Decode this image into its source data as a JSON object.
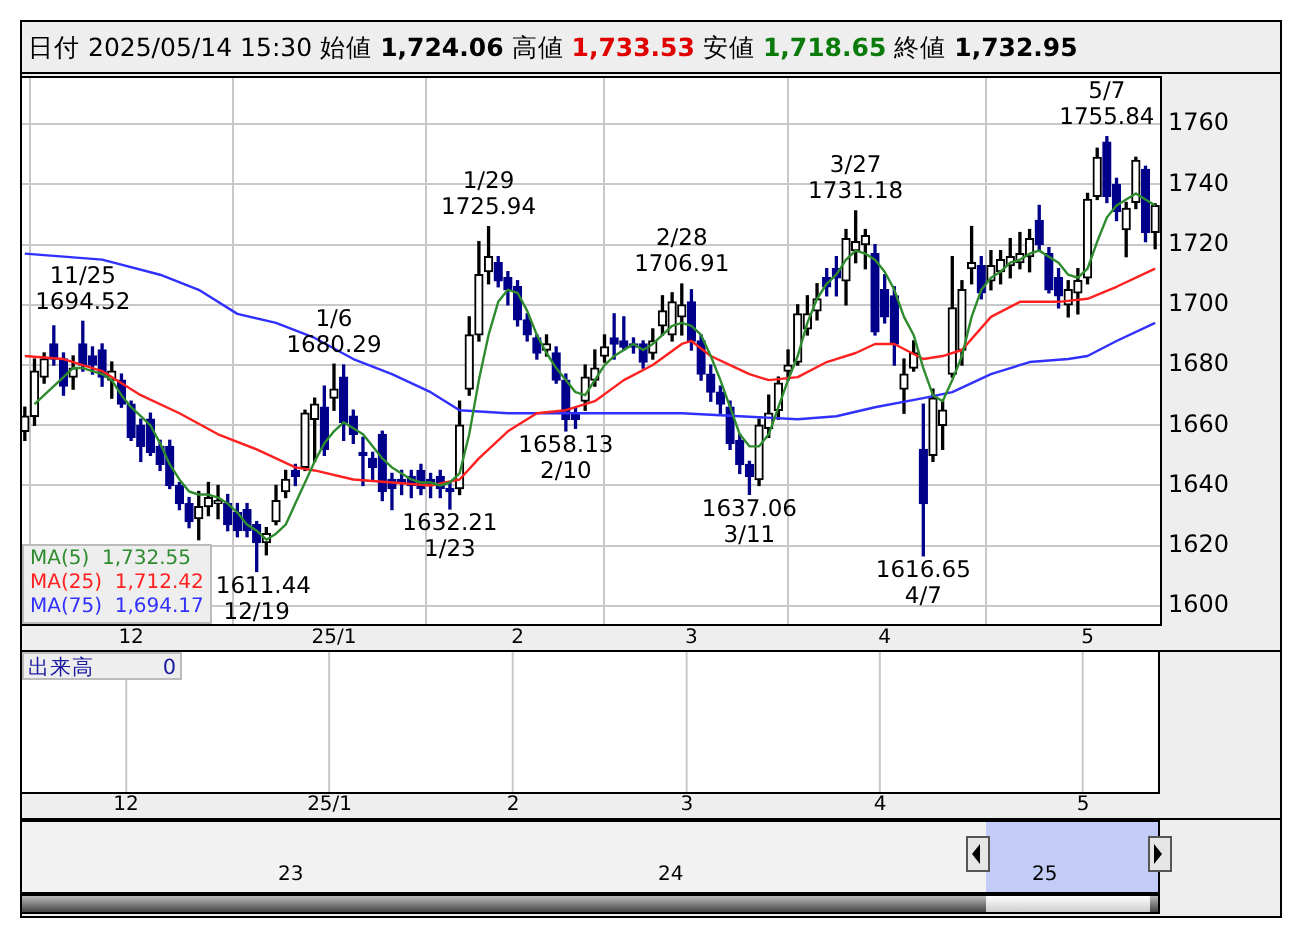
{
  "chart_data": {
    "type": "candlestick",
    "title": "日付 2025/05/14 15:30 始値 1,724.06 高値 1,733.53 安値 1,718.65 終値 1,732.95",
    "categories": [
      null,
      null,
      null,
      null,
      null,
      null,
      null,
      null,
      null,
      null,
      null,
      "12",
      null,
      null,
      null,
      null,
      null,
      null,
      null,
      null,
      null,
      null,
      null,
      null,
      null,
      null,
      null,
      null,
      null,
      null,
      null,
      null,
      "25/1",
      null,
      null,
      null,
      null,
      null,
      null,
      null,
      null,
      null,
      null,
      null,
      null,
      null,
      null,
      null,
      null,
      null,
      null,
      "2",
      null,
      null,
      null,
      null,
      null,
      null,
      null,
      null,
      null,
      null,
      null,
      null,
      null,
      null,
      null,
      null,
      null,
      "3",
      null,
      null,
      null,
      null,
      null,
      null,
      null,
      null,
      null,
      null,
      null,
      null,
      null,
      null,
      null,
      null,
      null,
      null,
      null,
      "4",
      null,
      null,
      null,
      null,
      null,
      null,
      null,
      null,
      null,
      null,
      null,
      null,
      null,
      null,
      null,
      null,
      null,
      null,
      null,
      null,
      "5",
      null,
      null,
      null,
      null,
      null,
      null,
      null
    ],
    "ohlc": [
      [
        1658,
        1666,
        1655,
        1663
      ],
      [
        1663,
        1682,
        1660,
        1678
      ],
      [
        1676,
        1684,
        1674,
        1682
      ],
      [
        1687,
        1693,
        1680,
        1682
      ],
      [
        1682,
        1684,
        1670,
        1673
      ],
      [
        1676,
        1683,
        1672,
        1679
      ],
      [
        1687,
        1694.52,
        1678,
        1680
      ],
      [
        1683,
        1686,
        1677,
        1680
      ],
      [
        1685,
        1687,
        1673,
        1676
      ],
      [
        1675,
        1681,
        1669,
        1678
      ],
      [
        1675,
        1677,
        1666,
        1667
      ],
      [
        1667,
        1668,
        1655,
        1656
      ],
      [
        1660,
        1662,
        1648,
        1653
      ],
      [
        1662,
        1664,
        1650,
        1651
      ],
      [
        1653,
        1655,
        1645,
        1647
      ],
      [
        1653,
        1655,
        1639,
        1640
      ],
      [
        1640,
        1641,
        1632,
        1634
      ],
      [
        1634,
        1636,
        1626,
        1628
      ],
      [
        1629,
        1638,
        1622,
        1633
      ],
      [
        1633,
        1641,
        1630,
        1636
      ],
      [
        1634,
        1640,
        1629,
        1635
      ],
      [
        1634,
        1637,
        1625,
        1627
      ],
      [
        1631,
        1634,
        1623,
        1625
      ],
      [
        1632,
        1634,
        1623,
        1625
      ],
      [
        1627,
        1628,
        1611.44,
        1621
      ],
      [
        1621,
        1626,
        1617,
        1624
      ],
      [
        1628,
        1640,
        1627,
        1635
      ],
      [
        1638,
        1645,
        1636,
        1642
      ],
      [
        1645,
        1647,
        1640,
        1643
      ],
      [
        1646,
        1665,
        1645,
        1664
      ],
      [
        1662,
        1669,
        1648,
        1667
      ],
      [
        1666,
        1673,
        1650,
        1652
      ],
      [
        1669,
        1680.29,
        1665,
        1672
      ],
      [
        1676,
        1680,
        1655,
        1661
      ],
      [
        1663,
        1665,
        1654,
        1657
      ],
      [
        1651,
        1656,
        1640,
        1650
      ],
      [
        1649,
        1651,
        1642,
        1646
      ],
      [
        1657,
        1658,
        1635,
        1638
      ],
      [
        1642,
        1644,
        1632,
        1639
      ],
      [
        1642,
        1645,
        1637,
        1641
      ],
      [
        1643,
        1645,
        1636,
        1640
      ],
      [
        1645,
        1647,
        1637,
        1639
      ],
      [
        1642,
        1644,
        1636,
        1640
      ],
      [
        1643,
        1645,
        1636,
        1639
      ],
      [
        1639,
        1641,
        1632.21,
        1638
      ],
      [
        1639,
        1668,
        1637,
        1660
      ],
      [
        1672,
        1696,
        1670,
        1690
      ],
      [
        1690,
        1721,
        1688,
        1710
      ],
      [
        1711,
        1725.94,
        1707,
        1716
      ],
      [
        1714,
        1716,
        1706,
        1708
      ],
      [
        1709,
        1711,
        1700,
        1705
      ],
      [
        1706,
        1708,
        1693,
        1695
      ],
      [
        1695,
        1697,
        1688,
        1690
      ],
      [
        1689,
        1690,
        1682,
        1684
      ],
      [
        1685,
        1690,
        1683,
        1687
      ],
      [
        1684,
        1686,
        1674,
        1675
      ],
      [
        1675,
        1677,
        1658.13,
        1662
      ],
      [
        1664,
        1666,
        1659,
        1662
      ],
      [
        1668,
        1680,
        1665,
        1676
      ],
      [
        1675,
        1685,
        1673,
        1679
      ],
      [
        1683,
        1690,
        1681,
        1686
      ],
      [
        1689,
        1697,
        1682,
        1687
      ],
      [
        1688,
        1696,
        1685,
        1686
      ],
      [
        1687,
        1689,
        1684,
        1686
      ],
      [
        1687,
        1688,
        1679,
        1681
      ],
      [
        1684,
        1692,
        1682,
        1688
      ],
      [
        1693,
        1703,
        1690,
        1698
      ],
      [
        1690,
        1704,
        1688,
        1701
      ],
      [
        1696,
        1706.91,
        1690,
        1700
      ],
      [
        1701,
        1705,
        1685,
        1688
      ],
      [
        1688,
        1690,
        1675,
        1677
      ],
      [
        1677,
        1680,
        1668,
        1671
      ],
      [
        1671,
        1673,
        1664,
        1667
      ],
      [
        1666,
        1668,
        1652,
        1654
      ],
      [
        1655,
        1657,
        1644,
        1647
      ],
      [
        1647,
        1648,
        1637.06,
        1643
      ],
      [
        1642,
        1662,
        1640,
        1660
      ],
      [
        1659,
        1670,
        1656,
        1664
      ],
      [
        1665,
        1676,
        1662,
        1674
      ],
      [
        1678,
        1685,
        1675,
        1680
      ],
      [
        1681,
        1700,
        1680,
        1697
      ],
      [
        1692,
        1703,
        1690,
        1697
      ],
      [
        1698,
        1707,
        1695,
        1702
      ],
      [
        1709,
        1712,
        1703,
        1706
      ],
      [
        1712,
        1716,
        1703,
        1709
      ],
      [
        1708,
        1725,
        1700,
        1722
      ],
      [
        1718,
        1731.18,
        1714,
        1721
      ],
      [
        1720,
        1725,
        1712,
        1723
      ],
      [
        1717,
        1720,
        1690,
        1691
      ],
      [
        1705,
        1710,
        1694,
        1696
      ],
      [
        1703,
        1706,
        1680,
        1687
      ],
      [
        1672,
        1682,
        1664,
        1677
      ],
      [
        1679,
        1688,
        1678,
        1684
      ],
      [
        1652,
        1667,
        1616.65,
        1634
      ],
      [
        1650,
        1672,
        1648,
        1669
      ],
      [
        1660,
        1668,
        1652,
        1665
      ],
      [
        1677,
        1716,
        1676,
        1699
      ],
      [
        1685,
        1708,
        1680,
        1705
      ],
      [
        1712,
        1726,
        1707,
        1714
      ],
      [
        1713,
        1716,
        1702,
        1704
      ],
      [
        1708,
        1718,
        1705,
        1713
      ],
      [
        1711,
        1718,
        1707,
        1715
      ],
      [
        1713,
        1722,
        1709,
        1716
      ],
      [
        1714,
        1724,
        1712,
        1717
      ],
      [
        1716,
        1725,
        1711,
        1722
      ],
      [
        1728,
        1733,
        1718,
        1720
      ],
      [
        1717,
        1719,
        1704,
        1705
      ],
      [
        1709,
        1712,
        1699,
        1703
      ],
      [
        1700,
        1708,
        1696,
        1705
      ],
      [
        1704,
        1712,
        1697,
        1708
      ],
      [
        1709,
        1737,
        1707,
        1735
      ],
      [
        1736,
        1752,
        1735,
        1749
      ],
      [
        1754,
        1755.84,
        1734,
        1736
      ],
      [
        1740,
        1742,
        1728,
        1731
      ],
      [
        1725,
        1734,
        1716,
        1732
      ],
      [
        1734,
        1749,
        1732,
        1748
      ],
      [
        1745,
        1746,
        1721,
        1724
      ],
      [
        1724.06,
        1733.53,
        1718.65,
        1732.95
      ]
    ],
    "series": [
      {
        "type": "line",
        "name": "MA(5)  1,732.55",
        "color": "#2e8b2e",
        "values": [
          null,
          1667,
          1670,
          1673,
          1676,
          1679,
          1679,
          1678,
          1677,
          1675,
          1670,
          1666,
          1663,
          1660,
          1654,
          1647,
          1642,
          1638,
          1637,
          1637,
          1636,
          1634,
          1631,
          1627,
          1625,
          1622,
          1624,
          1627,
          1634,
          1641,
          1648,
          1654,
          1658,
          1661,
          1659,
          1657,
          1653,
          1649,
          1646,
          1644,
          1642,
          1641,
          1641,
          1640,
          1641,
          1644,
          1657,
          1675,
          1690,
          1701,
          1705,
          1704,
          1698,
          1690,
          1684,
          1679,
          1675,
          1671,
          1670,
          1675,
          1680,
          1683,
          1685,
          1687,
          1685,
          1687,
          1690,
          1693,
          1694,
          1693,
          1690,
          1683,
          1675,
          1666,
          1657,
          1653,
          1653,
          1657,
          1666,
          1675,
          1683,
          1694,
          1702,
          1707,
          1710,
          1715,
          1718,
          1717,
          1715,
          1711,
          1705,
          1696,
          1690,
          1679,
          1670,
          1668,
          1675,
          1683,
          1696,
          1705,
          1709,
          1711,
          1714,
          1715,
          1717,
          1718,
          1716,
          1714,
          1710,
          1709,
          1712,
          1721,
          1729,
          1733,
          1735,
          1737,
          1735,
          1733
        ]
      },
      {
        "type": "line",
        "name": "MA(25)  1,712.42",
        "color": "#ff2020",
        "values": [
          1683,
          null,
          null,
          null,
          1682,
          null,
          null,
          null,
          1678,
          null,
          null,
          null,
          1670,
          null,
          null,
          null,
          1664,
          null,
          null,
          null,
          1657,
          null,
          null,
          null,
          1652,
          null,
          null,
          null,
          1646,
          null,
          1645,
          null,
          null,
          null,
          1642,
          null,
          null,
          null,
          1641,
          null,
          null,
          null,
          1640,
          null,
          null,
          1642,
          null,
          1649,
          null,
          null,
          1658,
          null,
          null,
          1664,
          null,
          null,
          1665,
          null,
          null,
          1668,
          null,
          null,
          1675,
          null,
          null,
          1680,
          null,
          null,
          1687,
          1688,
          null,
          1683,
          null,
          1680,
          null,
          1677,
          null,
          1675,
          null,
          null,
          1676,
          null,
          null,
          1681,
          null,
          null,
          1684,
          null,
          1687,
          null,
          1687,
          null,
          null,
          1682,
          null,
          1683,
          null,
          1685,
          null,
          null,
          1696,
          null,
          null,
          1701,
          null,
          null,
          null,
          1701,
          null,
          null,
          1702,
          null,
          null,
          1706,
          null,
          null,
          null,
          1712
        ]
      },
      {
        "type": "line",
        "name": "MA(75)  1,694.17",
        "color": "#3030ff",
        "values": [
          1717,
          null,
          null,
          null,
          null,
          null,
          null,
          null,
          1715,
          null,
          null,
          null,
          null,
          null,
          1710,
          null,
          null,
          null,
          1705,
          null,
          null,
          null,
          1697,
          null,
          null,
          null,
          1694,
          null,
          null,
          null,
          1689,
          null,
          null,
          null,
          1682,
          null,
          null,
          null,
          1677,
          null,
          null,
          null,
          1671,
          null,
          null,
          1665,
          null,
          null,
          null,
          null,
          1664,
          null,
          null,
          null,
          null,
          null,
          1664,
          null,
          null,
          null,
          null,
          null,
          1664,
          null,
          null,
          null,
          null,
          null,
          1664,
          null,
          null,
          null,
          null,
          null,
          1663,
          null,
          null,
          null,
          null,
          null,
          1662,
          null,
          null,
          null,
          1663,
          null,
          null,
          null,
          1666,
          null,
          null,
          null,
          null,
          1669,
          null,
          null,
          1671,
          null,
          null,
          null,
          1677,
          null,
          null,
          null,
          1681,
          null,
          null,
          null,
          1682,
          null,
          1683,
          null,
          null,
          1688,
          null,
          null,
          null,
          1694
        ]
      }
    ],
    "ylim": [
      1594,
      1776
    ],
    "yticks": [
      1600,
      1620,
      1640,
      1660,
      1680,
      1700,
      1720,
      1740,
      1760
    ],
    "grid": true,
    "legend": "bottom left",
    "marker": "none",
    "annotations": [
      "11/25\n1694.52",
      "1611.44\n12/19",
      "1/6\n1680.29",
      "1632.21\n1/23",
      "1/29\n1725.94",
      "1658.13\n2/10",
      "2/28\n1706.91",
      "1637.06\n3/11",
      "3/27\n1731.18",
      "1616.65\n4/7",
      "5/7\n1755.84",
      "出来高 0",
      "23",
      "24",
      "25"
    ]
  }
}
